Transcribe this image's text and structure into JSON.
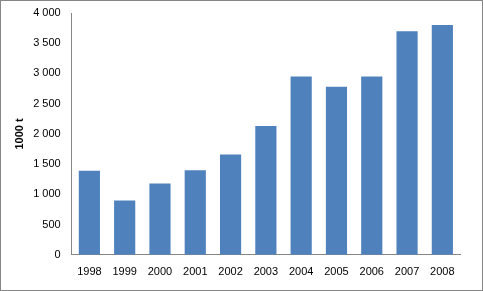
{
  "chart_data": {
    "type": "bar",
    "y_label": "1000 t",
    "categories": [
      "1998",
      "1999",
      "2000",
      "2001",
      "2002",
      "2003",
      "2004",
      "2005",
      "2006",
      "2007",
      "2008"
    ],
    "values": [
      1390,
      900,
      1180,
      1400,
      1660,
      2130,
      2950,
      2780,
      2950,
      3700,
      3800
    ],
    "color": "#4f81bd",
    "ylim": [
      0,
      4000
    ],
    "yticks": [
      0,
      500,
      {
        "value": 1000,
        "label": "1 000"
      },
      {
        "value": 1500,
        "label": "1 500"
      },
      {
        "value": 2000,
        "label": "2 000"
      },
      {
        "value": 2500,
        "label": "2 500"
      },
      {
        "value": 3000,
        "label": "3 000"
      },
      {
        "value": 3500,
        "label": "3 500"
      },
      {
        "value": 4000,
        "label": "4 000"
      }
    ],
    "grid": false
  }
}
